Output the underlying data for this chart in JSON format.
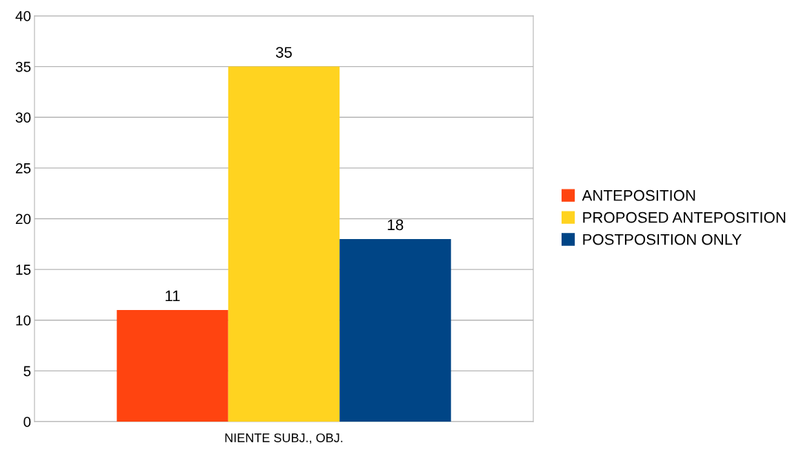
{
  "chart_data": {
    "type": "bar",
    "categories": [
      "NIENTE SUBJ., OBJ."
    ],
    "series": [
      {
        "name": "ANTEPOSITION",
        "color": "#ff4410",
        "values": [
          11
        ]
      },
      {
        "name": "PROPOSED ANTEPOSITION",
        "color": "#ffd320",
        "values": [
          35
        ]
      },
      {
        "name": "POSTPOSITION ONLY",
        "color": "#004586",
        "values": [
          18
        ]
      }
    ],
    "ylim": [
      0,
      40
    ],
    "yticks": [
      0,
      5,
      10,
      15,
      20,
      25,
      30,
      35,
      40
    ],
    "grid": "y",
    "legend": "right",
    "data_labels": true
  }
}
